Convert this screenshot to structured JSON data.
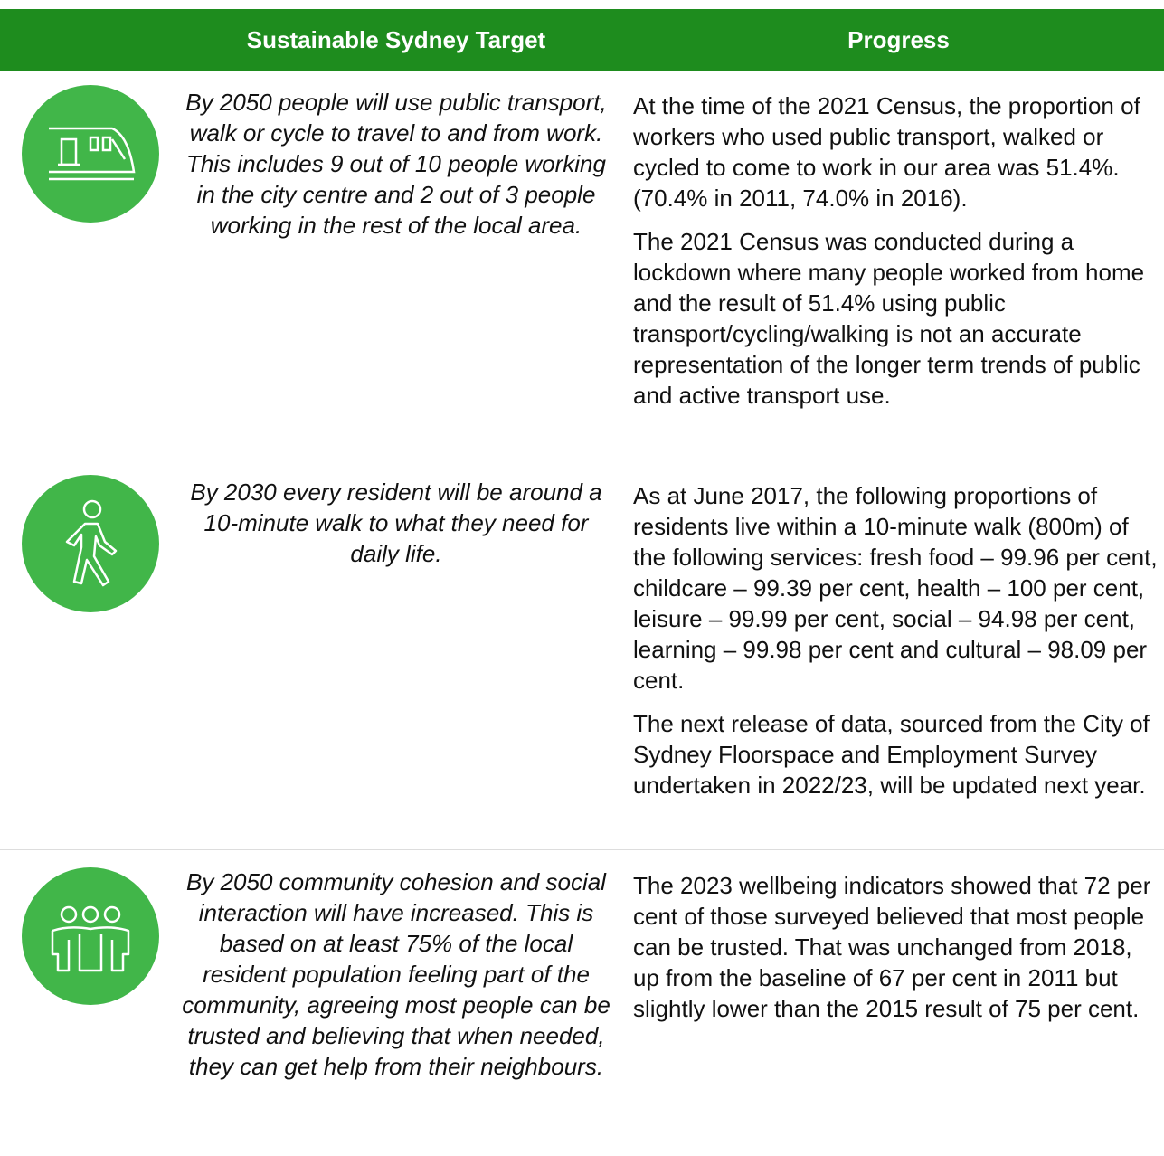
{
  "table": {
    "header": [
      "Sustainable Sydney Target",
      "Progress"
    ],
    "rows": [
      {
        "target": "By 2050 people will use public transport, walk or cycle to travel to and from work. This includes 9 out of 10 people working in the city centre and 2 out of 3 people working in the rest of the local area.",
        "progress": [
          "At the time of the 2021 Census, the proportion of workers who used public transport, walked or cycled to come to work in our area was 51.4%. (70.4% in 2011, 74.0% in 2016).",
          "The 2021 Census was conducted during a lockdown where many people worked from home and the result of 51.4% using public transport/cycling/walking is not an accurate representation of the longer term trends of public and active transport use."
        ]
      },
      {
        "target": "By 2030 every resident will be around a 10-minute walk to what they need for daily life.",
        "progress": [
          "As at June 2017, the following proportions of residents live within a 10-minute walk (800m) of the following services: fresh food – 99.96 per cent, childcare – 99.39 per cent, health – 100 per cent, leisure – 99.99 per cent, social – 94.98 per cent, learning – 99.98 per cent and cultural – 98.09 per cent.",
          "The next release of data, sourced from the City of Sydney Floorspace and Employment Survey undertaken in 2022/23, will be updated next year."
        ]
      },
      {
        "target": "By 2050 community cohesion and social interaction will have increased. This is based on at least 75% of the local resident population feeling part of the community, agreeing most people can be trusted and believing that when needed, they can get help from their neighbours.",
        "progress": [
          "The 2023 wellbeing indicators showed that 72 per cent of those surveyed believed that most people can be trusted. That was unchanged from 2018, up from the baseline of 67 per cent in 2011 but slightly lower than the 2015 result of 75 per cent."
        ]
      }
    ]
  }
}
